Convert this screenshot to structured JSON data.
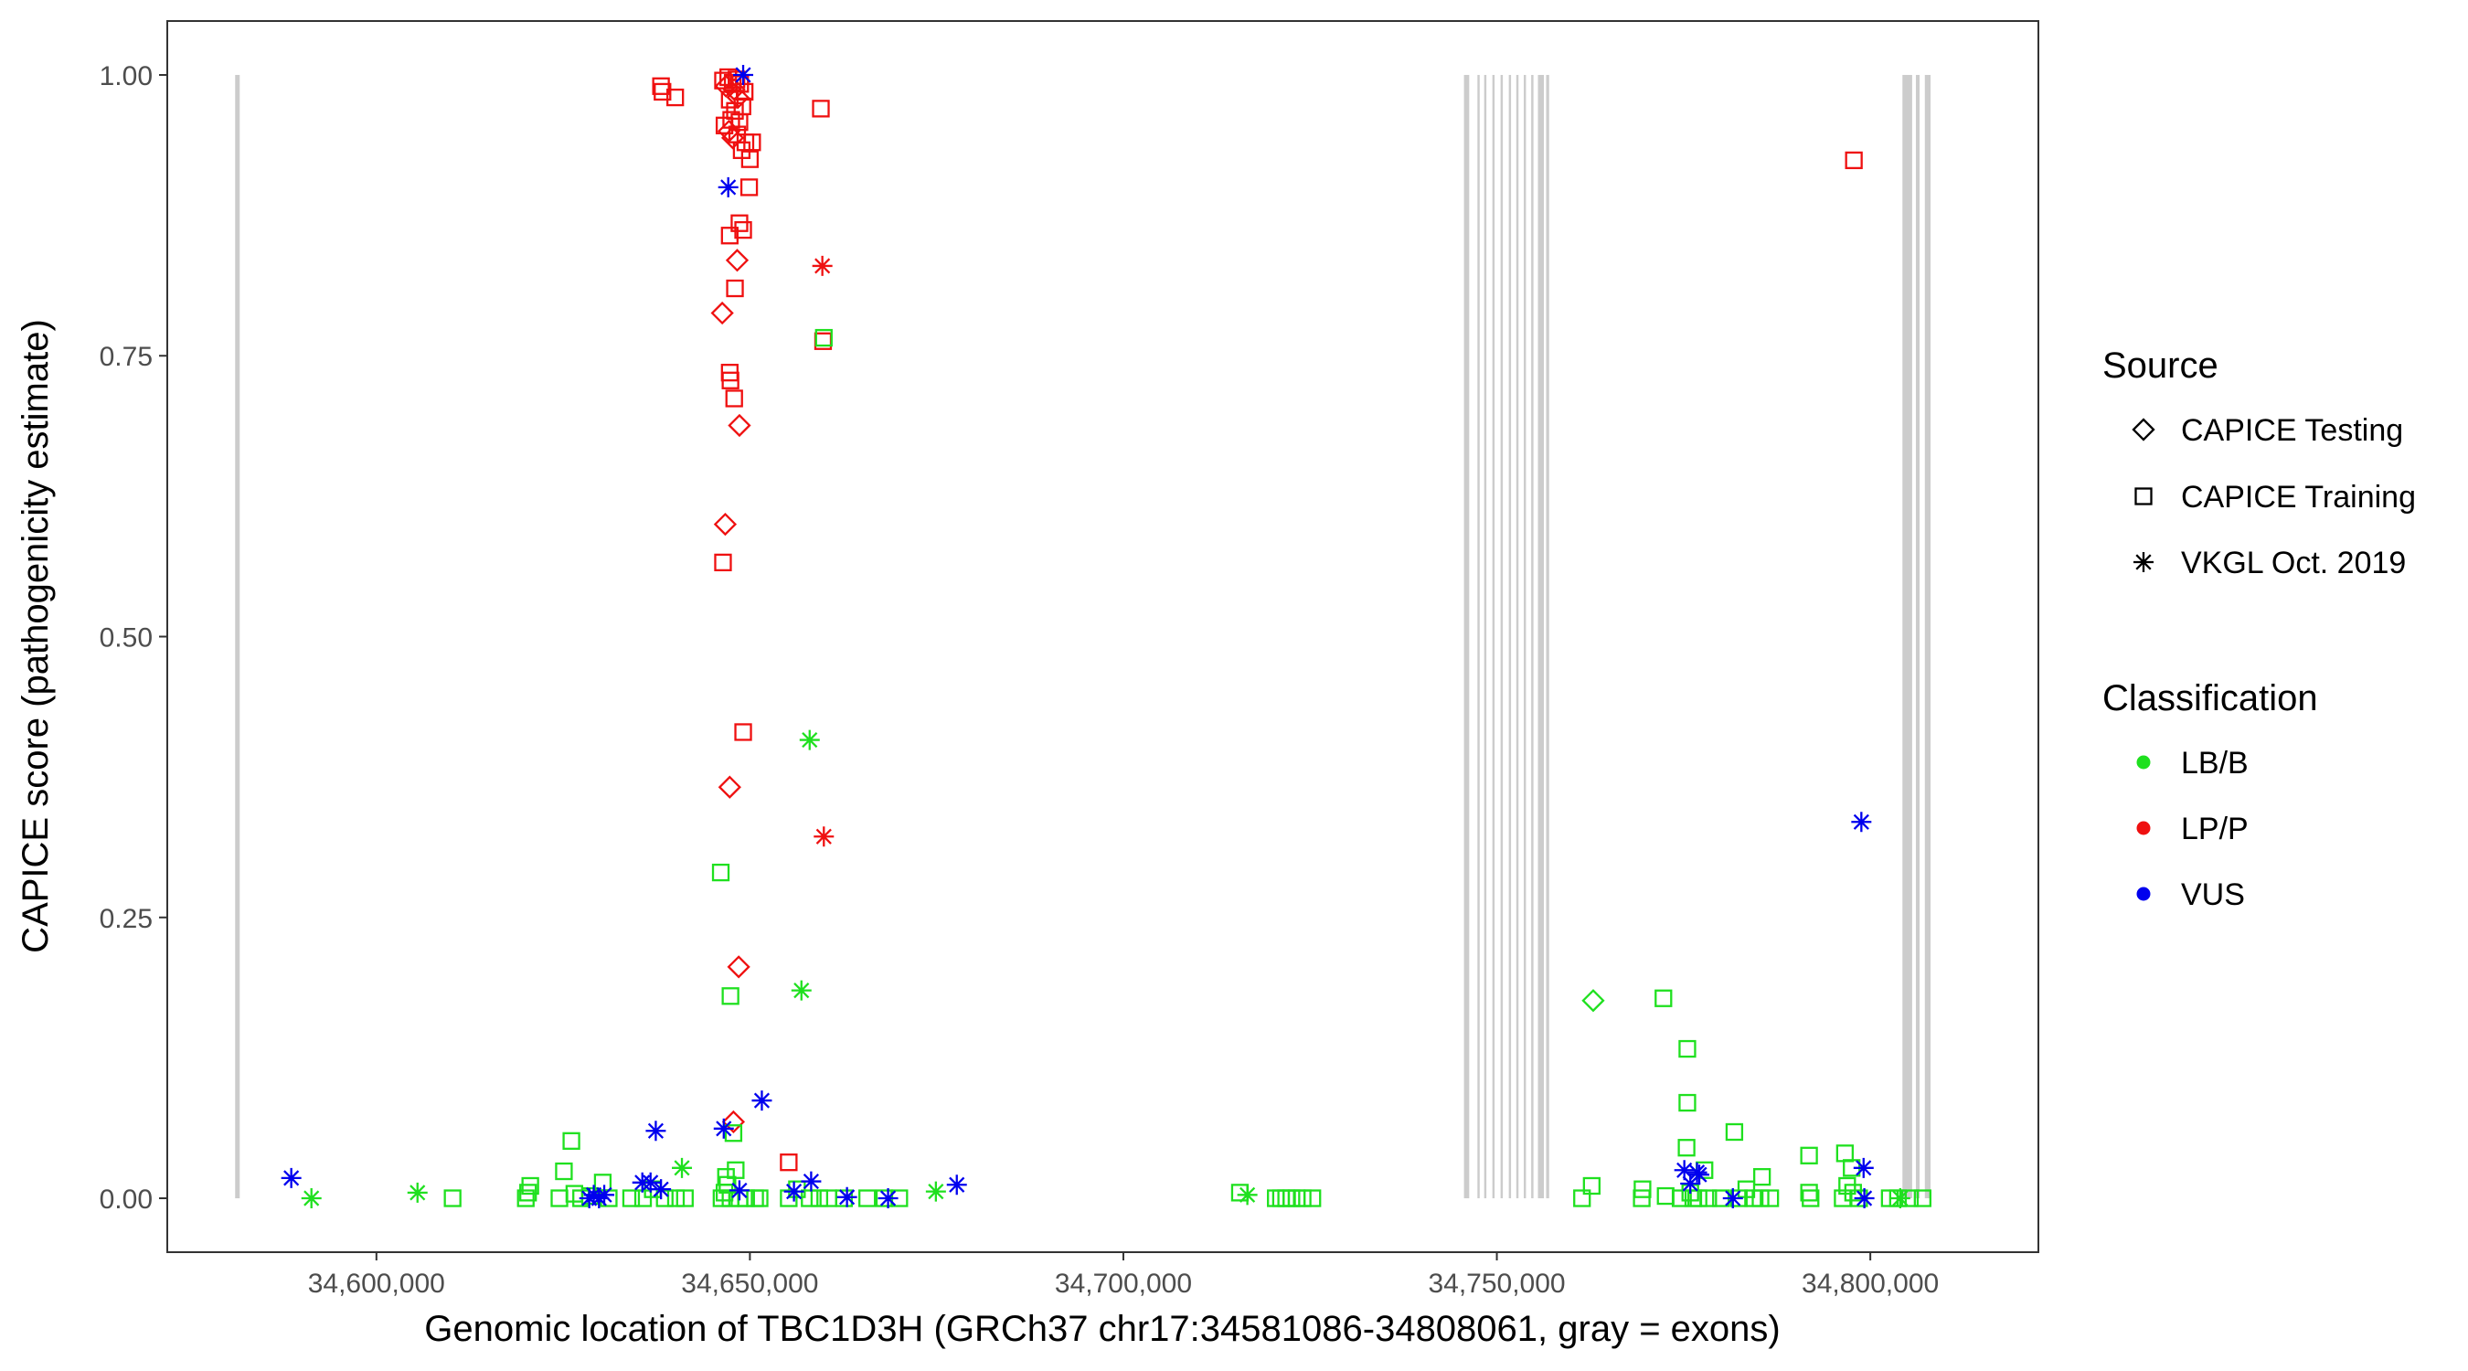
{
  "chart_data": {
    "type": "scatter",
    "title": "",
    "xlabel": "Genomic location of TBC1D3H (GRCh37 chr17:34581086-34808061, gray = exons)",
    "ylabel": "CAPICE score (pathogenicity estimate)",
    "xlim": [
      34572000,
      34822500
    ],
    "ylim": [
      -0.048,
      1.048
    ],
    "x_ticks": [
      34600000,
      34650000,
      34700000,
      34750000,
      34800000
    ],
    "x_tick_labels": [
      "34,600,000",
      "34,650,000",
      "34,700,000",
      "34,750,000",
      "34,800,000"
    ],
    "y_ticks": [
      0,
      0.25,
      0.5,
      0.75,
      1.0
    ],
    "y_tick_labels": [
      "0.00",
      "0.25",
      "0.50",
      "0.75",
      "1.00"
    ],
    "grid": false,
    "exons_color": "#cccccc",
    "exons": [
      [
        34581086,
        34581700
      ],
      [
        34745600,
        34746300
      ],
      [
        34747400,
        34747700
      ],
      [
        34748300,
        34748600
      ],
      [
        34749400,
        34749700
      ],
      [
        34750500,
        34750800
      ],
      [
        34751600,
        34751900
      ],
      [
        34752600,
        34752900
      ],
      [
        34753600,
        34753900
      ],
      [
        34754600,
        34754900
      ],
      [
        34755500,
        34756300
      ],
      [
        34756600,
        34757000
      ],
      [
        34804300,
        34805600
      ],
      [
        34806100,
        34806600
      ],
      [
        34807300,
        34808061
      ]
    ],
    "legend": {
      "source_title": "Source",
      "source_items": [
        {
          "label": "CAPICE Testing",
          "shape": "diamond"
        },
        {
          "label": "CAPICE Training",
          "shape": "square"
        },
        {
          "label": "VKGL Oct. 2019",
          "shape": "asterisk"
        }
      ],
      "class_title": "Classification",
      "class_items": [
        {
          "label": "LB/B",
          "color": "#1fe01f"
        },
        {
          "label": "LP/P",
          "color": "#ef1010"
        },
        {
          "label": "VUS",
          "color": "#0000ee"
        }
      ],
      "position": "right"
    },
    "series": [
      {
        "name": "LP/P",
        "color": "#ef1010",
        "points": [
          {
            "x": 34646400,
            "y": 0.995,
            "s": "square"
          },
          {
            "x": 34647100,
            "y": 0.998,
            "s": "square"
          },
          {
            "x": 34647700,
            "y": 0.993,
            "s": "square"
          },
          {
            "x": 34648200,
            "y": 0.996,
            "s": "square"
          },
          {
            "x": 34648700,
            "y": 0.992,
            "s": "square"
          },
          {
            "x": 34649300,
            "y": 0.985,
            "s": "square"
          },
          {
            "x": 34646800,
            "y": 0.99,
            "s": "diamond"
          },
          {
            "x": 34647900,
            "y": 0.987,
            "s": "diamond"
          },
          {
            "x": 34648400,
            "y": 0.98,
            "s": "diamond"
          },
          {
            "x": 34647300,
            "y": 0.978,
            "s": "square"
          },
          {
            "x": 34649000,
            "y": 0.972,
            "s": "square"
          },
          {
            "x": 34648000,
            "y": 0.968,
            "s": "square"
          },
          {
            "x": 34647500,
            "y": 0.96,
            "s": "square"
          },
          {
            "x": 34646600,
            "y": 0.955,
            "s": "square"
          },
          {
            "x": 34648600,
            "y": 0.958,
            "s": "square"
          },
          {
            "x": 34647200,
            "y": 0.95,
            "s": "diamond"
          },
          {
            "x": 34647700,
            "y": 0.944,
            "s": "diamond"
          },
          {
            "x": 34648300,
            "y": 0.947,
            "s": "square"
          },
          {
            "x": 34649400,
            "y": 0.94,
            "s": "square"
          },
          {
            "x": 34648900,
            "y": 0.933,
            "s": "square"
          },
          {
            "x": 34650300,
            "y": 0.94,
            "s": "square"
          },
          {
            "x": 34650000,
            "y": 0.925,
            "s": "square"
          },
          {
            "x": 34649900,
            "y": 0.9,
            "s": "square"
          },
          {
            "x": 34638100,
            "y": 0.99,
            "s": "square"
          },
          {
            "x": 34638300,
            "y": 0.985,
            "s": "square"
          },
          {
            "x": 34640000,
            "y": 0.98,
            "s": "square"
          },
          {
            "x": 34659500,
            "y": 0.97,
            "s": "square"
          },
          {
            "x": 34648600,
            "y": 0.868,
            "s": "square"
          },
          {
            "x": 34649100,
            "y": 0.862,
            "s": "square"
          },
          {
            "x": 34647300,
            "y": 0.857,
            "s": "square"
          },
          {
            "x": 34648300,
            "y": 0.835,
            "s": "diamond"
          },
          {
            "x": 34659700,
            "y": 0.83,
            "s": "asterisk"
          },
          {
            "x": 34648000,
            "y": 0.81,
            "s": "square"
          },
          {
            "x": 34646300,
            "y": 0.788,
            "s": "diamond"
          },
          {
            "x": 34659800,
            "y": 0.763,
            "s": "square"
          },
          {
            "x": 34647300,
            "y": 0.735,
            "s": "square"
          },
          {
            "x": 34647400,
            "y": 0.728,
            "s": "square"
          },
          {
            "x": 34647900,
            "y": 0.712,
            "s": "square"
          },
          {
            "x": 34648600,
            "y": 0.688,
            "s": "diamond"
          },
          {
            "x": 34646700,
            "y": 0.6,
            "s": "diamond"
          },
          {
            "x": 34646400,
            "y": 0.566,
            "s": "square"
          },
          {
            "x": 34649100,
            "y": 0.415,
            "s": "square"
          },
          {
            "x": 34647300,
            "y": 0.366,
            "s": "diamond"
          },
          {
            "x": 34659900,
            "y": 0.322,
            "s": "asterisk"
          },
          {
            "x": 34648500,
            "y": 0.206,
            "s": "diamond"
          },
          {
            "x": 34647800,
            "y": 0.068,
            "s": "diamond"
          },
          {
            "x": 34655200,
            "y": 0.032,
            "s": "square"
          },
          {
            "x": 34797800,
            "y": 0.924,
            "s": "square"
          }
        ]
      },
      {
        "name": "LB/B",
        "color": "#1fe01f",
        "points": [
          {
            "x": 34591300,
            "y": 0.0,
            "s": "asterisk"
          },
          {
            "x": 34605500,
            "y": 0.005,
            "s": "asterisk"
          },
          {
            "x": 34610200,
            "y": 0.0,
            "s": "square"
          },
          {
            "x": 34620000,
            "y": 0.0,
            "s": "square"
          },
          {
            "x": 34620300,
            "y": 0.005,
            "s": "square"
          },
          {
            "x": 34620600,
            "y": 0.011,
            "s": "square"
          },
          {
            "x": 34624500,
            "y": 0.0,
            "s": "square"
          },
          {
            "x": 34625100,
            "y": 0.024,
            "s": "square"
          },
          {
            "x": 34626100,
            "y": 0.051,
            "s": "square"
          },
          {
            "x": 34626500,
            "y": 0.004,
            "s": "square"
          },
          {
            "x": 34627400,
            "y": 0.0,
            "s": "square"
          },
          {
            "x": 34628600,
            "y": 0.002,
            "s": "square"
          },
          {
            "x": 34630300,
            "y": 0.014,
            "s": "square"
          },
          {
            "x": 34631100,
            "y": 0.0,
            "s": "square"
          },
          {
            "x": 34634100,
            "y": 0.0,
            "s": "square"
          },
          {
            "x": 34635700,
            "y": 0.0,
            "s": "square"
          },
          {
            "x": 34637000,
            "y": 0.008,
            "s": "square"
          },
          {
            "x": 34638600,
            "y": 0.0,
            "s": "square"
          },
          {
            "x": 34640100,
            "y": 0.0,
            "s": "square"
          },
          {
            "x": 34640900,
            "y": 0.027,
            "s": "asterisk"
          },
          {
            "x": 34641300,
            "y": 0.0,
            "s": "square"
          },
          {
            "x": 34646200,
            "y": 0.0,
            "s": "square"
          },
          {
            "x": 34646600,
            "y": 0.005,
            "s": "square"
          },
          {
            "x": 34646800,
            "y": 0.019,
            "s": "square"
          },
          {
            "x": 34647000,
            "y": 0.012,
            "s": "square"
          },
          {
            "x": 34647400,
            "y": 0.0,
            "s": "square"
          },
          {
            "x": 34647800,
            "y": 0.058,
            "s": "square"
          },
          {
            "x": 34648100,
            "y": 0.025,
            "s": "square"
          },
          {
            "x": 34648600,
            "y": 0.0,
            "s": "square"
          },
          {
            "x": 34649500,
            "y": 0.0,
            "s": "square"
          },
          {
            "x": 34650700,
            "y": 0.0,
            "s": "square"
          },
          {
            "x": 34651300,
            "y": 0.0,
            "s": "square"
          },
          {
            "x": 34655200,
            "y": 0.0,
            "s": "square"
          },
          {
            "x": 34656300,
            "y": 0.008,
            "s": "square"
          },
          {
            "x": 34658000,
            "y": 0.0,
            "s": "square"
          },
          {
            "x": 34659300,
            "y": 0.0,
            "s": "square"
          },
          {
            "x": 34660500,
            "y": 0.0,
            "s": "square"
          },
          {
            "x": 34662600,
            "y": 0.0,
            "s": "square"
          },
          {
            "x": 34665700,
            "y": 0.0,
            "s": "square"
          },
          {
            "x": 34668000,
            "y": 0.0,
            "s": "square"
          },
          {
            "x": 34670000,
            "y": 0.0,
            "s": "square"
          },
          {
            "x": 34674900,
            "y": 0.006,
            "s": "asterisk"
          },
          {
            "x": 34646100,
            "y": 0.29,
            "s": "square"
          },
          {
            "x": 34647400,
            "y": 0.18,
            "s": "square"
          },
          {
            "x": 34656900,
            "y": 0.185,
            "s": "asterisk"
          },
          {
            "x": 34658000,
            "y": 0.408,
            "s": "asterisk"
          },
          {
            "x": 34659900,
            "y": 0.766,
            "s": "square"
          },
          {
            "x": 34715600,
            "y": 0.005,
            "s": "square"
          },
          {
            "x": 34716600,
            "y": 0.003,
            "s": "asterisk"
          },
          {
            "x": 34720400,
            "y": 0.0,
            "s": "square"
          },
          {
            "x": 34721100,
            "y": 0.0,
            "s": "square"
          },
          {
            "x": 34721800,
            "y": 0.0,
            "s": "square"
          },
          {
            "x": 34722500,
            "y": 0.0,
            "s": "square"
          },
          {
            "x": 34723200,
            "y": 0.0,
            "s": "square"
          },
          {
            "x": 34724000,
            "y": 0.0,
            "s": "square"
          },
          {
            "x": 34725300,
            "y": 0.0,
            "s": "square"
          },
          {
            "x": 34761400,
            "y": 0.0,
            "s": "square"
          },
          {
            "x": 34762700,
            "y": 0.011,
            "s": "square"
          },
          {
            "x": 34762900,
            "y": 0.176,
            "s": "diamond"
          },
          {
            "x": 34769400,
            "y": 0.0,
            "s": "square"
          },
          {
            "x": 34769500,
            "y": 0.008,
            "s": "square"
          },
          {
            "x": 34772300,
            "y": 0.178,
            "s": "square"
          },
          {
            "x": 34772600,
            "y": 0.002,
            "s": "square"
          },
          {
            "x": 34774600,
            "y": 0.0,
            "s": "square"
          },
          {
            "x": 34775500,
            "y": 0.133,
            "s": "square"
          },
          {
            "x": 34775500,
            "y": 0.085,
            "s": "square"
          },
          {
            "x": 34775400,
            "y": 0.045,
            "s": "square"
          },
          {
            "x": 34775900,
            "y": 0.005,
            "s": "square"
          },
          {
            "x": 34776300,
            "y": 0.0,
            "s": "square"
          },
          {
            "x": 34777000,
            "y": 0.0,
            "s": "square"
          },
          {
            "x": 34777800,
            "y": 0.025,
            "s": "square"
          },
          {
            "x": 34778300,
            "y": 0.0,
            "s": "square"
          },
          {
            "x": 34780000,
            "y": 0.0,
            "s": "square"
          },
          {
            "x": 34781800,
            "y": 0.059,
            "s": "square"
          },
          {
            "x": 34782400,
            "y": 0.0,
            "s": "square"
          },
          {
            "x": 34783400,
            "y": 0.008,
            "s": "square"
          },
          {
            "x": 34784300,
            "y": 0.0,
            "s": "square"
          },
          {
            "x": 34785500,
            "y": 0.019,
            "s": "square"
          },
          {
            "x": 34785300,
            "y": 0.0,
            "s": "square"
          },
          {
            "x": 34786600,
            "y": 0.0,
            "s": "square"
          },
          {
            "x": 34791800,
            "y": 0.038,
            "s": "square"
          },
          {
            "x": 34791800,
            "y": 0.005,
            "s": "square"
          },
          {
            "x": 34792000,
            "y": 0.0,
            "s": "square"
          },
          {
            "x": 34796300,
            "y": 0.0,
            "s": "square"
          },
          {
            "x": 34796600,
            "y": 0.04,
            "s": "square"
          },
          {
            "x": 34796900,
            "y": 0.011,
            "s": "square"
          },
          {
            "x": 34797500,
            "y": 0.027,
            "s": "square"
          },
          {
            "x": 34797700,
            "y": 0.005,
            "s": "square"
          },
          {
            "x": 34798500,
            "y": 0.0,
            "s": "square"
          },
          {
            "x": 34802600,
            "y": 0.0,
            "s": "square"
          },
          {
            "x": 34803700,
            "y": 0.0,
            "s": "square"
          },
          {
            "x": 34804000,
            "y": 0.0,
            "s": "asterisk"
          },
          {
            "x": 34805300,
            "y": 0.0,
            "s": "square"
          },
          {
            "x": 34807000,
            "y": 0.0,
            "s": "square"
          }
        ]
      },
      {
        "name": "VUS",
        "color": "#0000ee",
        "points": [
          {
            "x": 34588600,
            "y": 0.018,
            "s": "asterisk"
          },
          {
            "x": 34628500,
            "y": 0.0,
            "s": "asterisk"
          },
          {
            "x": 34629100,
            "y": 0.003,
            "s": "asterisk"
          },
          {
            "x": 34629800,
            "y": 0.0,
            "s": "asterisk"
          },
          {
            "x": 34630500,
            "y": 0.003,
            "s": "asterisk"
          },
          {
            "x": 34635600,
            "y": 0.014,
            "s": "asterisk"
          },
          {
            "x": 34636700,
            "y": 0.014,
            "s": "asterisk"
          },
          {
            "x": 34637400,
            "y": 0.06,
            "s": "asterisk"
          },
          {
            "x": 34638100,
            "y": 0.008,
            "s": "asterisk"
          },
          {
            "x": 34646500,
            "y": 0.062,
            "s": "asterisk"
          },
          {
            "x": 34647100,
            "y": 0.9,
            "s": "asterisk"
          },
          {
            "x": 34648600,
            "y": 0.007,
            "s": "asterisk"
          },
          {
            "x": 34649100,
            "y": 1.0,
            "s": "asterisk"
          },
          {
            "x": 34651600,
            "y": 0.087,
            "s": "asterisk"
          },
          {
            "x": 34655900,
            "y": 0.006,
            "s": "asterisk"
          },
          {
            "x": 34658200,
            "y": 0.015,
            "s": "asterisk"
          },
          {
            "x": 34663000,
            "y": 0.001,
            "s": "asterisk"
          },
          {
            "x": 34668500,
            "y": 0.0,
            "s": "asterisk"
          },
          {
            "x": 34677700,
            "y": 0.012,
            "s": "asterisk"
          },
          {
            "x": 34775100,
            "y": 0.025,
            "s": "asterisk"
          },
          {
            "x": 34775900,
            "y": 0.013,
            "s": "asterisk"
          },
          {
            "x": 34776800,
            "y": 0.023,
            "s": "asterisk"
          },
          {
            "x": 34777100,
            "y": 0.021,
            "s": "asterisk"
          },
          {
            "x": 34781600,
            "y": 0.0,
            "s": "asterisk"
          },
          {
            "x": 34798800,
            "y": 0.335,
            "s": "asterisk"
          },
          {
            "x": 34799100,
            "y": 0.027,
            "s": "asterisk"
          },
          {
            "x": 34799200,
            "y": 0.0,
            "s": "asterisk"
          }
        ]
      }
    ]
  }
}
